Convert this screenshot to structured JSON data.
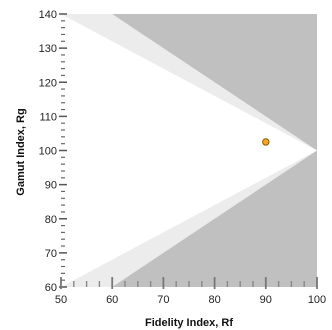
{
  "chart_data": {
    "type": "scatter",
    "title": "",
    "xlabel": "Fidelity Index, Rf",
    "ylabel": "Gamut Index, Rg",
    "xlim": [
      50,
      100
    ],
    "ylim": [
      60,
      140
    ],
    "x_ticks": [
      "50",
      "60",
      "70",
      "80",
      "90",
      "100"
    ],
    "y_ticks": [
      "60",
      "70",
      "80",
      "90",
      "100",
      "110",
      "120",
      "130",
      "140"
    ],
    "grid": false,
    "legend": "none",
    "points": [
      {
        "x": 90,
        "y": 102.5
      }
    ],
    "regions": {
      "outer_color": "#c0c0c0",
      "band_color": "#ececec",
      "inner_color": "#ffffff"
    },
    "point_color": "#f5a623",
    "point_edge_color": "#8a5a00"
  }
}
